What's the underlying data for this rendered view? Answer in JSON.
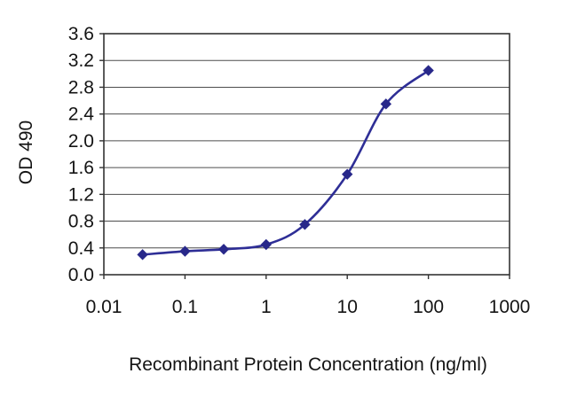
{
  "chart_data": {
    "type": "line",
    "title": "",
    "xlabel": "Recombinant Protein Concentration (ng/ml)",
    "ylabel": "OD 490",
    "x_scale": "log",
    "xlim": [
      0.01,
      1000
    ],
    "x_ticks": [
      0.01,
      0.1,
      1,
      10,
      100,
      1000
    ],
    "x_tick_labels": [
      "0.01",
      "0.1",
      "1",
      "10",
      "100",
      "1000"
    ],
    "ylim": [
      0.0,
      3.6
    ],
    "y_ticks": [
      0.0,
      0.4,
      0.8,
      1.2,
      1.6,
      2.0,
      2.4,
      2.8,
      3.2,
      3.6
    ],
    "y_tick_labels": [
      "0.0",
      "0.4",
      "0.8",
      "1.2",
      "1.6",
      "2.0",
      "2.4",
      "2.8",
      "3.2",
      "3.6"
    ],
    "grid": "horizontal",
    "legend": "none",
    "series": [
      {
        "name": "OD 490",
        "marker": "diamond",
        "color": "#2e2e96",
        "x": [
          0.03,
          0.1,
          0.3,
          1,
          3,
          10,
          30,
          100
        ],
        "y": [
          0.3,
          0.35,
          0.38,
          0.45,
          0.75,
          1.5,
          2.55,
          3.05
        ]
      }
    ]
  },
  "colors": {
    "line": "#2e2e96",
    "marker": "#28288a",
    "grid": "#4d4d4d",
    "border": "#333333",
    "text": "#141414",
    "background": "#ffffff"
  }
}
